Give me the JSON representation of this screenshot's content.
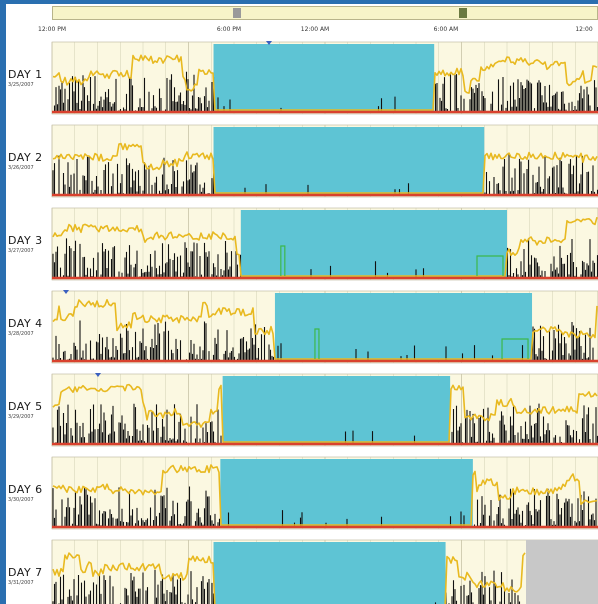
{
  "chart_data": {
    "type": "area",
    "time_axis": [
      "12:00 PM",
      "6:00 PM",
      "12:00 AM",
      "6:00 AM",
      "12:00"
    ],
    "days": [
      {
        "label": "DAY 1",
        "date": "3/25/2007",
        "rest_start_hour": 19.1,
        "rest_end_hour": 4.8
      },
      {
        "label": "DAY 2",
        "date": "3/26/2007",
        "rest_start_hour": 19.1,
        "rest_end_hour": 7.0
      },
      {
        "label": "DAY 3",
        "date": "3/27/2007",
        "rest_start_hour": 20.3,
        "rest_end_hour": 8.0
      },
      {
        "label": "DAY 4",
        "date": "3/28/2007",
        "rest_start_hour": 21.8,
        "rest_end_hour": 9.1
      },
      {
        "label": "DAY 5",
        "date": "3/29/2007",
        "rest_start_hour": 19.5,
        "rest_end_hour": 5.5
      },
      {
        "label": "DAY 6",
        "date": "3/30/2007",
        "rest_start_hour": 19.4,
        "rest_end_hour": 6.5
      },
      {
        "label": "DAY 7",
        "date": "3/31/2007",
        "rest_start_hour": 19.1,
        "rest_end_hour": 5.3
      }
    ],
    "series": [
      {
        "name": "activity"
      },
      {
        "name": "light"
      },
      {
        "name": "off-wrist"
      }
    ],
    "colors": {
      "activity": "#111111",
      "light": "#e8b920",
      "rest": "#5ec4d4",
      "offwrist": "#d9412e",
      "green": "#3cb84a",
      "panel": "#fbf8e1",
      "grid": "#c8c4a8",
      "nodata": "#c8c8c8"
    }
  }
}
